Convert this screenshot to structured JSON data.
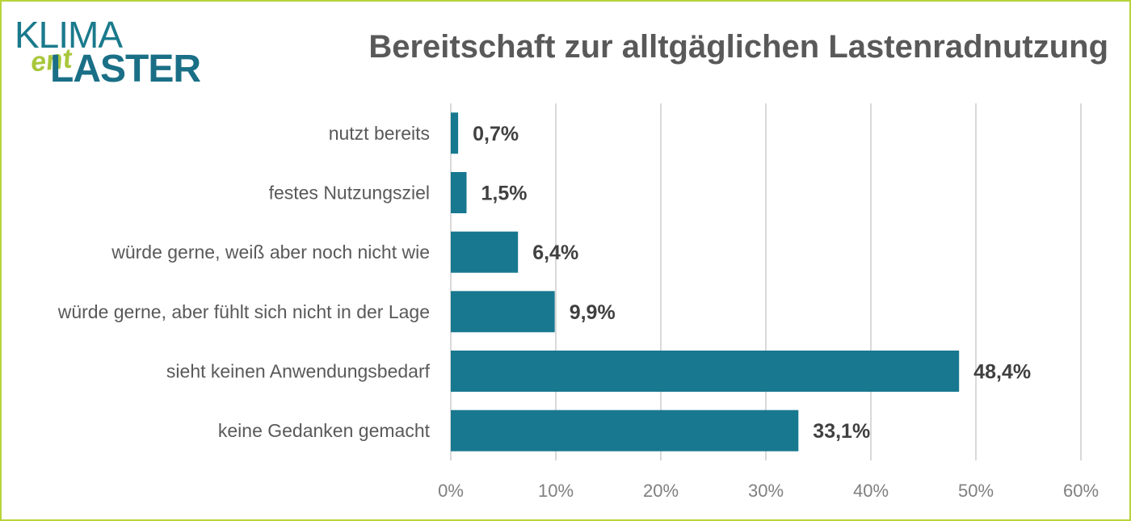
{
  "logo": {
    "line1": "KLIMA",
    "middle": "ent",
    "line2": "LASTER"
  },
  "chart_data": {
    "type": "bar",
    "orientation": "horizontal",
    "title": "Bereitschaft zur alltgäglichen Lastenradnutzung",
    "categories": [
      "nutzt bereits",
      "festes Nutzungsziel",
      "würde gerne, weiß aber noch nicht wie",
      "würde gerne, aber fühlt sich nicht in der Lage",
      "sieht keinen Anwendungsbedarf",
      "keine Gedanken gemacht"
    ],
    "values": [
      0.7,
      1.5,
      6.4,
      9.9,
      48.4,
      33.1
    ],
    "data_labels": [
      "0,7%",
      "1,5%",
      "6,4%",
      "9,9%",
      "48,4%",
      "33,1%"
    ],
    "xlim": [
      0,
      60
    ],
    "x_ticks": [
      0,
      10,
      20,
      30,
      40,
      50,
      60
    ],
    "x_tick_labels": [
      "0%",
      "10%",
      "20%",
      "30%",
      "40%",
      "50%",
      "60%"
    ],
    "grid": true,
    "bar_color": "#18788f",
    "border_color": "#b7d33b"
  }
}
